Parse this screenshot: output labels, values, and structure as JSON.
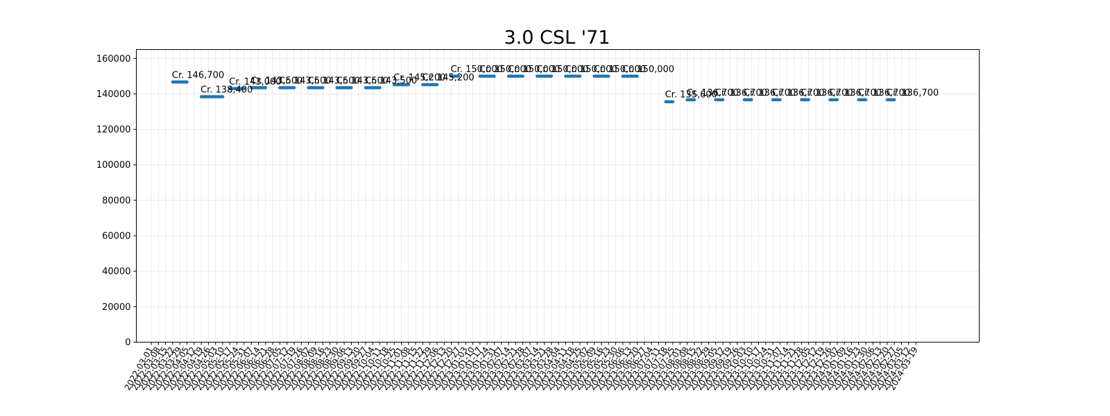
{
  "chart_data": {
    "type": "line",
    "title": "3.0 CSL '71",
    "xlabel": "",
    "ylabel": "",
    "ylim": [
      0,
      165000
    ],
    "yticks": [
      0,
      20000,
      40000,
      60000,
      80000,
      100000,
      120000,
      140000,
      160000
    ],
    "grid": true,
    "series_color": "#1f77b4",
    "x": [
      "2022-03-01",
      "2022-03-08",
      "2022-03-15",
      "2022-03-22",
      "2022-03-29",
      "2022-04-05",
      "2022-04-12",
      "2022-04-19",
      "2022-04-26",
      "2022-05-03",
      "2022-05-10",
      "2022-05-17",
      "2022-05-24",
      "2022-05-31",
      "2022-06-07",
      "2022-06-14",
      "2022-06-21",
      "2022-06-28",
      "2022-07-05",
      "2022-07-12",
      "2022-07-19",
      "2022-07-26",
      "2022-08-02",
      "2022-08-09",
      "2022-08-16",
      "2022-08-23",
      "2022-08-30",
      "2022-09-06",
      "2022-09-13",
      "2022-09-20",
      "2022-09-27",
      "2022-10-04",
      "2022-10-11",
      "2022-10-18",
      "2022-10-25",
      "2022-11-01",
      "2022-11-08",
      "2022-11-15",
      "2022-11-22",
      "2022-11-29",
      "2022-12-06",
      "2022-12-13",
      "2022-12-20",
      "2022-12-27",
      "2023-01-03",
      "2023-01-10",
      "2023-01-17",
      "2023-01-24",
      "2023-01-31",
      "2023-02-07",
      "2023-02-14",
      "2023-02-21",
      "2023-02-28",
      "2023-03-07",
      "2023-03-14",
      "2023-03-21",
      "2023-03-28",
      "2023-04-04",
      "2023-04-11",
      "2023-04-18",
      "2023-04-25",
      "2023-05-02",
      "2023-05-09",
      "2023-05-16",
      "2023-05-23",
      "2023-05-30",
      "2023-06-06",
      "2023-06-13",
      "2023-06-20",
      "2023-06-27",
      "2023-07-04",
      "2023-07-11",
      "2023-07-18",
      "2023-07-25",
      "2023-08-01",
      "2023-08-08",
      "2023-08-15",
      "2023-08-22",
      "2023-08-29",
      "2023-09-05",
      "2023-09-12",
      "2023-09-19",
      "2023-09-26",
      "2023-10-03",
      "2023-10-10",
      "2023-10-17",
      "2023-10-24",
      "2023-10-31",
      "2023-11-07",
      "2023-11-14",
      "2023-11-21",
      "2023-11-28",
      "2023-12-05",
      "2023-12-12",
      "2023-12-19",
      "2023-12-26",
      "2024-01-02",
      "2024-01-09",
      "2024-01-16",
      "2024-01-23",
      "2024-01-30",
      "2024-02-06",
      "2024-02-13",
      "2024-02-20",
      "2024-02-27",
      "2024-03-05",
      "2024-03-12",
      "2024-03-19"
    ],
    "segments": [
      {
        "start": 3,
        "end": 5,
        "y": 146700,
        "label": "Cr. 146,700"
      },
      {
        "start": 7,
        "end": 10,
        "y": 138400,
        "label": "Cr. 138,400"
      },
      {
        "start": 11,
        "end": 13,
        "y": 143000,
        "label": "Cr. 143,000"
      },
      {
        "start": 14,
        "end": 16,
        "y": 143500,
        "label": "Cr. 143,500"
      },
      {
        "start": 18,
        "end": 20,
        "y": 143500,
        "label": "Cr. 143,500"
      },
      {
        "start": 22,
        "end": 24,
        "y": 143500,
        "label": "Cr. 143,500"
      },
      {
        "start": 26,
        "end": 28,
        "y": 143500,
        "label": "Cr. 143,500"
      },
      {
        "start": 30,
        "end": 32,
        "y": 143500,
        "label": "Cr. 143,500"
      },
      {
        "start": 34,
        "end": 36,
        "y": 145200,
        "label": "Cr. 145,200"
      },
      {
        "start": 38,
        "end": 40,
        "y": 145200,
        "label": "Cr. 145,200"
      },
      {
        "start": 42,
        "end": 43,
        "y": 150000,
        "label": "Cr. 150,000"
      },
      {
        "start": 46,
        "end": 48,
        "y": 150000,
        "label": "Cr. 150,000"
      },
      {
        "start": 50,
        "end": 52,
        "y": 150000,
        "label": "Cr. 150,000"
      },
      {
        "start": 54,
        "end": 56,
        "y": 150000,
        "label": "Cr. 150,000"
      },
      {
        "start": 58,
        "end": 60,
        "y": 150000,
        "label": "Cr. 150,000"
      },
      {
        "start": 62,
        "end": 64,
        "y": 150000,
        "label": "Cr. 150,000"
      },
      {
        "start": 66,
        "end": 68,
        "y": 150000,
        "label": "Cr. 150,000"
      },
      {
        "start": 72,
        "end": 73,
        "y": 135600,
        "label": "Cr. 135,600"
      },
      {
        "start": 75,
        "end": 76,
        "y": 136700,
        "label": "Cr. 136,700"
      },
      {
        "start": 79,
        "end": 80,
        "y": 136700,
        "label": "Cr. 136,700"
      },
      {
        "start": 83,
        "end": 84,
        "y": 136700,
        "label": "Cr. 136,700"
      },
      {
        "start": 87,
        "end": 88,
        "y": 136700,
        "label": "Cr. 136,700"
      },
      {
        "start": 91,
        "end": 92,
        "y": 136700,
        "label": "Cr. 136,700"
      },
      {
        "start": 95,
        "end": 96,
        "y": 136700,
        "label": "Cr. 136,700"
      },
      {
        "start": 99,
        "end": 100,
        "y": 136700,
        "label": "Cr. 136,700"
      },
      {
        "start": 103,
        "end": 104,
        "y": 136700,
        "label": "Cr. 136,700"
      }
    ]
  }
}
